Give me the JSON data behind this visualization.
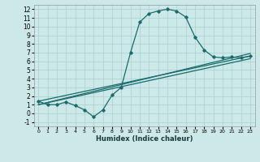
{
  "xlabel": "Humidex (Indice chaleur)",
  "bg_color": "#cce8e8",
  "line_color": "#1a6b6b",
  "grid_color": "#afd4d4",
  "xlim": [
    -0.5,
    23.5
  ],
  "ylim": [
    -1.5,
    12.5
  ],
  "xticks": [
    0,
    1,
    2,
    3,
    4,
    5,
    6,
    7,
    8,
    9,
    10,
    11,
    12,
    13,
    14,
    15,
    16,
    17,
    18,
    19,
    20,
    21,
    22,
    23
  ],
  "yticks": [
    -1,
    0,
    1,
    2,
    3,
    4,
    5,
    6,
    7,
    8,
    9,
    10,
    11,
    12
  ],
  "curve1_x": [
    0,
    1,
    2,
    3,
    4,
    5,
    6,
    7,
    8,
    9,
    10,
    11,
    12,
    13,
    14,
    15,
    16,
    17,
    18,
    19,
    20,
    21,
    22,
    23
  ],
  "curve1_y": [
    1.4,
    1.0,
    1.0,
    1.3,
    0.9,
    0.4,
    -0.4,
    0.4,
    2.1,
    3.0,
    7.0,
    10.5,
    11.5,
    11.8,
    12.0,
    11.8,
    11.1,
    8.8,
    7.3,
    6.5,
    6.4,
    6.5,
    6.4,
    6.6
  ],
  "line2_x": [
    0,
    23
  ],
  "line2_y": [
    1.4,
    6.6
  ],
  "line3_x": [
    0,
    23
  ],
  "line3_y": [
    1.0,
    6.3
  ],
  "line4_x": [
    0,
    23
  ],
  "line4_y": [
    1.0,
    6.9
  ]
}
